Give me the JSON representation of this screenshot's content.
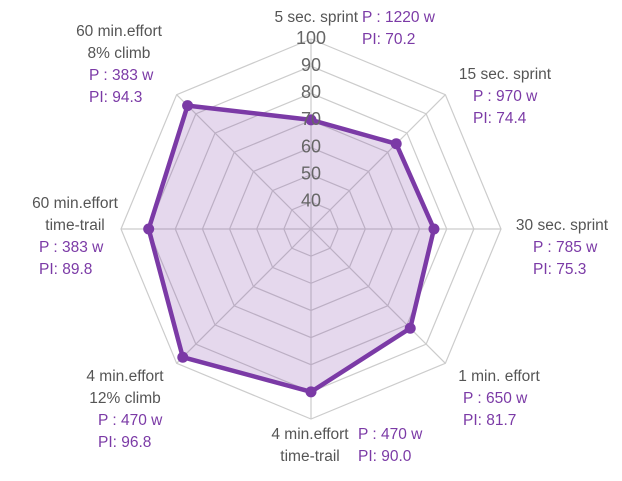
{
  "chart_data": {
    "type": "radar",
    "title": "",
    "rlim": [
      30,
      100
    ],
    "ticks": [
      "40",
      "50",
      "60",
      "70",
      "80",
      "90",
      "100"
    ],
    "grid": true,
    "colors": {
      "series": "#7b3aa6",
      "fill": "rgba(123,58,166,0.2)",
      "grid": "#cccccc",
      "text": "#555555"
    },
    "axes": [
      {
        "name": [
          "5 sec. sprint"
        ],
        "power": "P : 1220 w",
        "pi": "PI: 70.2",
        "value": 70.2
      },
      {
        "name": [
          "15 sec. sprint"
        ],
        "power": "P : 970 w",
        "pi": "PI: 74.4",
        "value": 74.4
      },
      {
        "name": [
          "30 sec. sprint"
        ],
        "power": "P : 785 w",
        "pi": "PI: 75.3",
        "value": 75.3
      },
      {
        "name": [
          "1 min. effort"
        ],
        "power": "P : 650 w",
        "pi": "PI: 81.7",
        "value": 81.7
      },
      {
        "name": [
          "4 min.effort",
          "time-trail"
        ],
        "power": "P : 470 w",
        "pi": "PI: 90.0",
        "value": 90.0
      },
      {
        "name": [
          "4 min.effort",
          "12% climb"
        ],
        "power": "P : 470 w",
        "pi": "PI: 96.8",
        "value": 96.8
      },
      {
        "name": [
          "60 min.effort",
          "time-trail"
        ],
        "power": "P : 383 w",
        "pi": "PI: 89.8",
        "value": 89.8
      },
      {
        "name": [
          "60 min.effort",
          "8% climb"
        ],
        "power": "P : 383 w",
        "pi": "PI: 94.3",
        "value": 94.3
      }
    ]
  }
}
